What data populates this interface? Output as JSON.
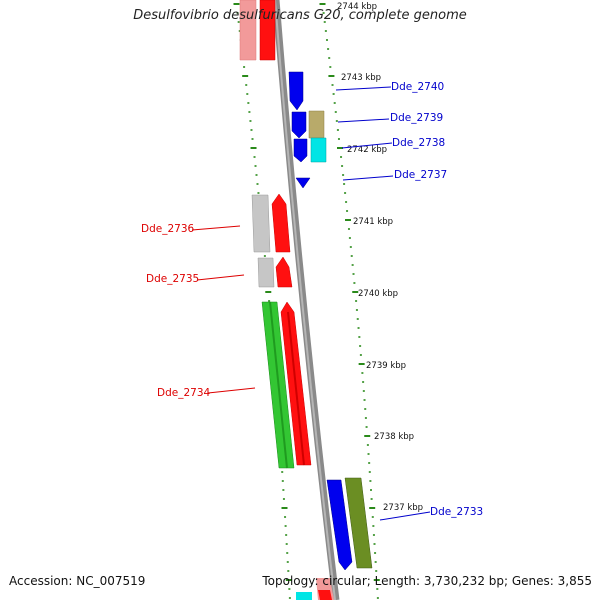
{
  "title": "Desulfovibrio desulfuricans G20, complete genome",
  "footer": {
    "accession": "Accession: NC_007519",
    "topology": "Topology: circular; Length: 3,730,232 bp; Genes: 3,855"
  },
  "colors": {
    "backbone": "#8a8a8a",
    "red": "#ff0000",
    "pink": "#f08f8f",
    "blue": "#0000ee",
    "olive": "#b8aa6a",
    "cyan": "#00e5e5",
    "green": "#2fc52f",
    "darkolive": "#6b8e23",
    "gray": "#c0c0c0",
    "tick": "#2a8a1a",
    "label_red": "#dd0000",
    "label_blue": "#0000cc"
  },
  "kbp_labels": [
    "2744 kbp",
    "2743 kbp",
    "2742 kbp",
    "2741 kbp",
    "2740 kbp",
    "2739 kbp",
    "2738 kbp",
    "2737 kbp"
  ],
  "gene_labels_left": [
    "Dde_2736",
    "Dde_2735",
    "Dde_2734"
  ],
  "gene_labels_right": [
    "Dde_2740",
    "Dde_2739",
    "Dde_2738",
    "Dde_2737",
    "Dde_2733"
  ]
}
